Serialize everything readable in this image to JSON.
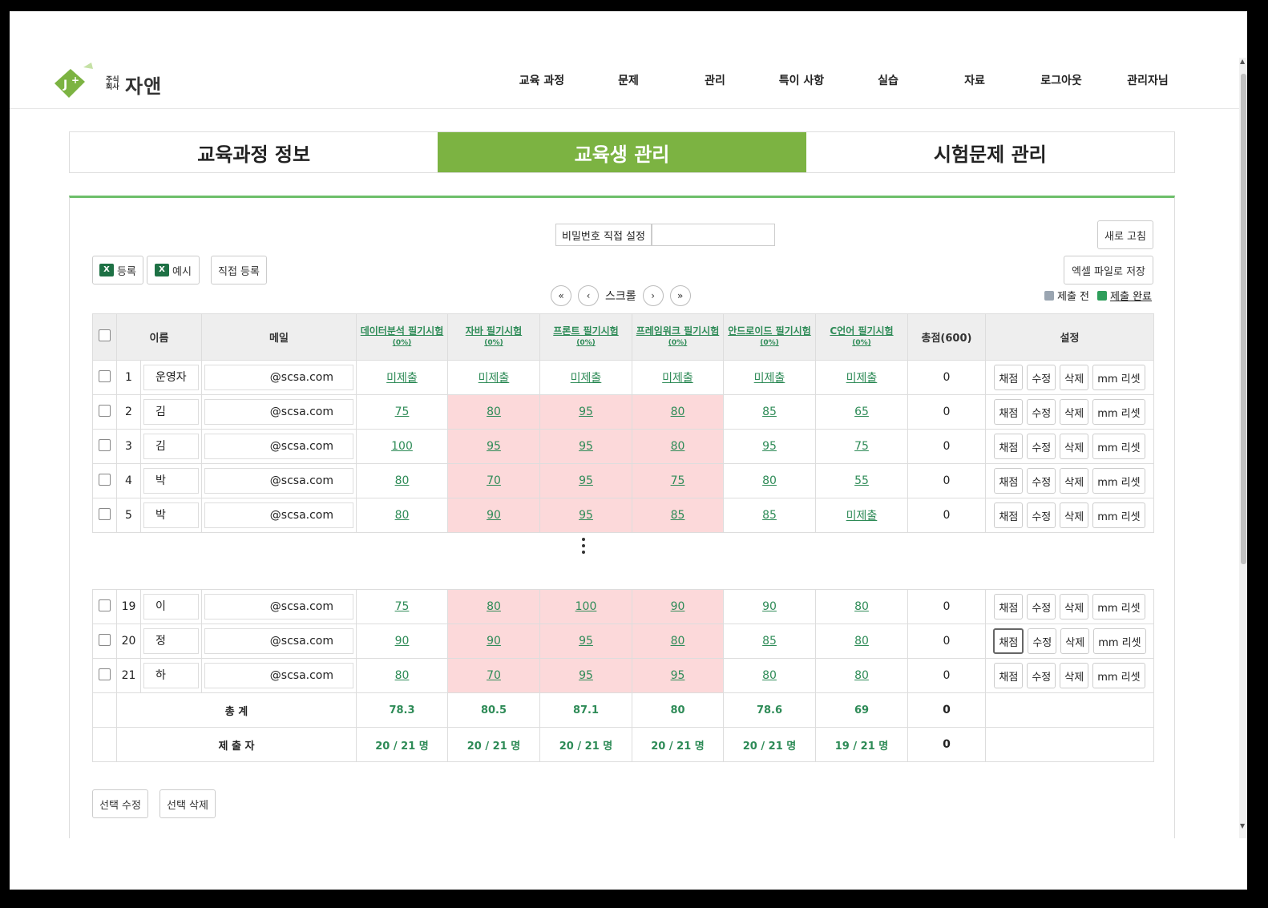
{
  "brand": {
    "small_text_1": "주식",
    "small_text_2": "회사",
    "name": "자앤"
  },
  "nav": [
    "교육 과정",
    "문제",
    "관리",
    "특이 사항",
    "실습",
    "자료",
    "로그아웃",
    "관리자님"
  ],
  "tabs": [
    {
      "label": "교육과정 정보",
      "active": false
    },
    {
      "label": "교육생 관리",
      "active": true
    },
    {
      "label": "시험문제 관리",
      "active": false
    }
  ],
  "toolbar": {
    "password_label": "비밀번호 직접 설정",
    "password_value": "",
    "refresh": "새로 고침",
    "excel_save": "엑셀 파일로 저장",
    "register": "등록",
    "example": "예시",
    "direct_register": "직접 등록",
    "excel_icon": "X"
  },
  "scroll": {
    "first": "«",
    "prev": "‹",
    "label": "스크롤",
    "next": "›",
    "last": "»"
  },
  "legend": {
    "before": "제출 전",
    "done": "제출 완료",
    "before_color": "#9aa5b1",
    "done_color": "#2e9e5b"
  },
  "table": {
    "headers": {
      "name": "이름",
      "mail": "메일",
      "exams": [
        {
          "title": "데이터분석 필기시험",
          "pct": "(0%)"
        },
        {
          "title": "자바 필기시험",
          "pct": "(0%)"
        },
        {
          "title": "프론트 필기시험",
          "pct": "(0%)"
        },
        {
          "title": "프레임워크 필기시험",
          "pct": "(0%)"
        },
        {
          "title": "안드로이드 필기시험",
          "pct": "(0%)"
        },
        {
          "title": "C언어 필기시험",
          "pct": "(0%)"
        }
      ],
      "total": "총점(600)",
      "settings": "설정"
    },
    "actions": {
      "grade": "채점",
      "edit": "수정",
      "delete": "삭제",
      "reset": "mm 리셋"
    },
    "rows_top": [
      {
        "no": "1",
        "name": "운영자",
        "mail": "@scsa.com",
        "scores": [
          "미제출",
          "미제출",
          "미제출",
          "미제출",
          "미제출",
          "미제출"
        ],
        "total": "0"
      },
      {
        "no": "2",
        "name": "김",
        "mail": "@scsa.com",
        "scores": [
          "75",
          "80",
          "95",
          "80",
          "85",
          "65"
        ],
        "total": "0"
      },
      {
        "no": "3",
        "name": "김",
        "mail": "@scsa.com",
        "scores": [
          "100",
          "95",
          "95",
          "80",
          "95",
          "75"
        ],
        "total": "0"
      },
      {
        "no": "4",
        "name": "박",
        "mail": "@scsa.com",
        "scores": [
          "80",
          "70",
          "95",
          "75",
          "80",
          "55"
        ],
        "total": "0"
      },
      {
        "no": "5",
        "name": "박",
        "mail": "@scsa.com",
        "scores": [
          "80",
          "90",
          "95",
          "85",
          "85",
          "미제출"
        ],
        "total": "0"
      }
    ],
    "rows_bottom": [
      {
        "no": "19",
        "name": "이",
        "mail": "@scsa.com",
        "scores": [
          "75",
          "80",
          "100",
          "90",
          "90",
          "80"
        ],
        "total": "0"
      },
      {
        "no": "20",
        "name": "정",
        "mail": "@scsa.com",
        "scores": [
          "90",
          "90",
          "95",
          "80",
          "85",
          "80"
        ],
        "total": "0"
      },
      {
        "no": "21",
        "name": "하",
        "mail": "@scsa.com",
        "scores": [
          "80",
          "70",
          "95",
          "95",
          "80",
          "80"
        ],
        "total": "0"
      }
    ],
    "summary": {
      "avg_label": "총 계",
      "avg": [
        "78.3",
        "80.5",
        "87.1",
        "80",
        "78.6",
        "69"
      ],
      "avg_total": "0",
      "sub_label": "제 출 자",
      "sub": [
        "20 / 21 명",
        "20 / 21 명",
        "20 / 21 명",
        "20 / 21 명",
        "20 / 21 명",
        "19 / 21 명"
      ],
      "sub_total": "0"
    }
  },
  "bottom": {
    "edit_selected": "선택 수정",
    "delete_selected": "선택 삭제"
  }
}
